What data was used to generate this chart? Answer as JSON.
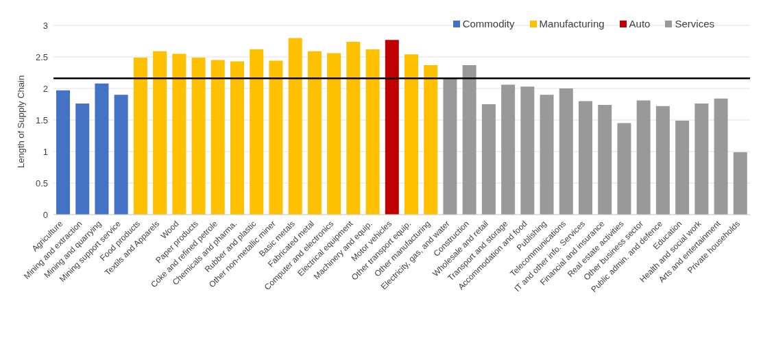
{
  "chart_data": {
    "type": "bar",
    "ylabel": "Length of Supply Chain",
    "categories": [
      "Agriculture",
      "Mining and extraction",
      "Mining and quarrying",
      "Mining support service",
      "Food products",
      "Textils and Apparels",
      "Wood",
      "Paper products",
      "Coke and refined petrole",
      "Chemicals and pharma.",
      "Rubber and plastic",
      "Other non-metallic miner",
      "Basic metals",
      "Fabricated metal",
      "Computer and electronics",
      "Electrical equipment",
      "Machinery and equip.",
      "Motor vehicles",
      "Other transport equip.",
      "Other manufacturing",
      "Electricity, gas, and water",
      "Construction",
      "Wholesale and retail",
      "Transport and storage",
      "Accommodation and food",
      "Publishing",
      "Telecommunications",
      "IT and other info. Services",
      "Financial and insurance",
      "Real estate activities",
      "Other business sector",
      "Public admin. and defence",
      "Education",
      "Health and social work",
      "Arts and entertainment",
      "Private households"
    ],
    "series": [
      {
        "name": "Commodity",
        "color": "#4472c4",
        "values": [
          1.97,
          1.76,
          2.08,
          1.9,
          null,
          null,
          null,
          null,
          null,
          null,
          null,
          null,
          null,
          null,
          null,
          null,
          null,
          null,
          null,
          null,
          null,
          null,
          null,
          null,
          null,
          null,
          null,
          null,
          null,
          null,
          null,
          null,
          null,
          null,
          null,
          null
        ]
      },
      {
        "name": "Manufacturing",
        "color": "#ffc000",
        "values": [
          null,
          null,
          null,
          null,
          2.49,
          2.59,
          2.55,
          2.49,
          2.45,
          2.43,
          2.62,
          2.44,
          2.8,
          2.59,
          2.56,
          2.74,
          2.62,
          null,
          2.54,
          2.37,
          null,
          null,
          null,
          null,
          null,
          null,
          null,
          null,
          null,
          null,
          null,
          null,
          null,
          null,
          null,
          null
        ]
      },
      {
        "name": "Auto",
        "color": "#c00000",
        "values": [
          null,
          null,
          null,
          null,
          null,
          null,
          null,
          null,
          null,
          null,
          null,
          null,
          null,
          null,
          null,
          null,
          null,
          2.77,
          null,
          null,
          null,
          null,
          null,
          null,
          null,
          null,
          null,
          null,
          null,
          null,
          null,
          null,
          null,
          null,
          null,
          null
        ]
      },
      {
        "name": "Services",
        "color": "#999999",
        "values": [
          null,
          null,
          null,
          null,
          null,
          null,
          null,
          null,
          null,
          null,
          null,
          null,
          null,
          null,
          null,
          null,
          null,
          null,
          null,
          null,
          2.16,
          2.37,
          1.75,
          2.06,
          2.03,
          1.9,
          2.0,
          1.8,
          1.74,
          1.45,
          1.81,
          1.72,
          1.49,
          1.76,
          1.84,
          0.99
        ]
      }
    ],
    "stacked": true,
    "ylim": [
      0,
      3
    ],
    "yticks": [
      0,
      0.5,
      1,
      1.5,
      2,
      2.5,
      3
    ],
    "grid": "y",
    "legend": "top right",
    "ref_lines": [
      {
        "axis": "y",
        "value": 2.16,
        "color": "#000000"
      }
    ]
  }
}
